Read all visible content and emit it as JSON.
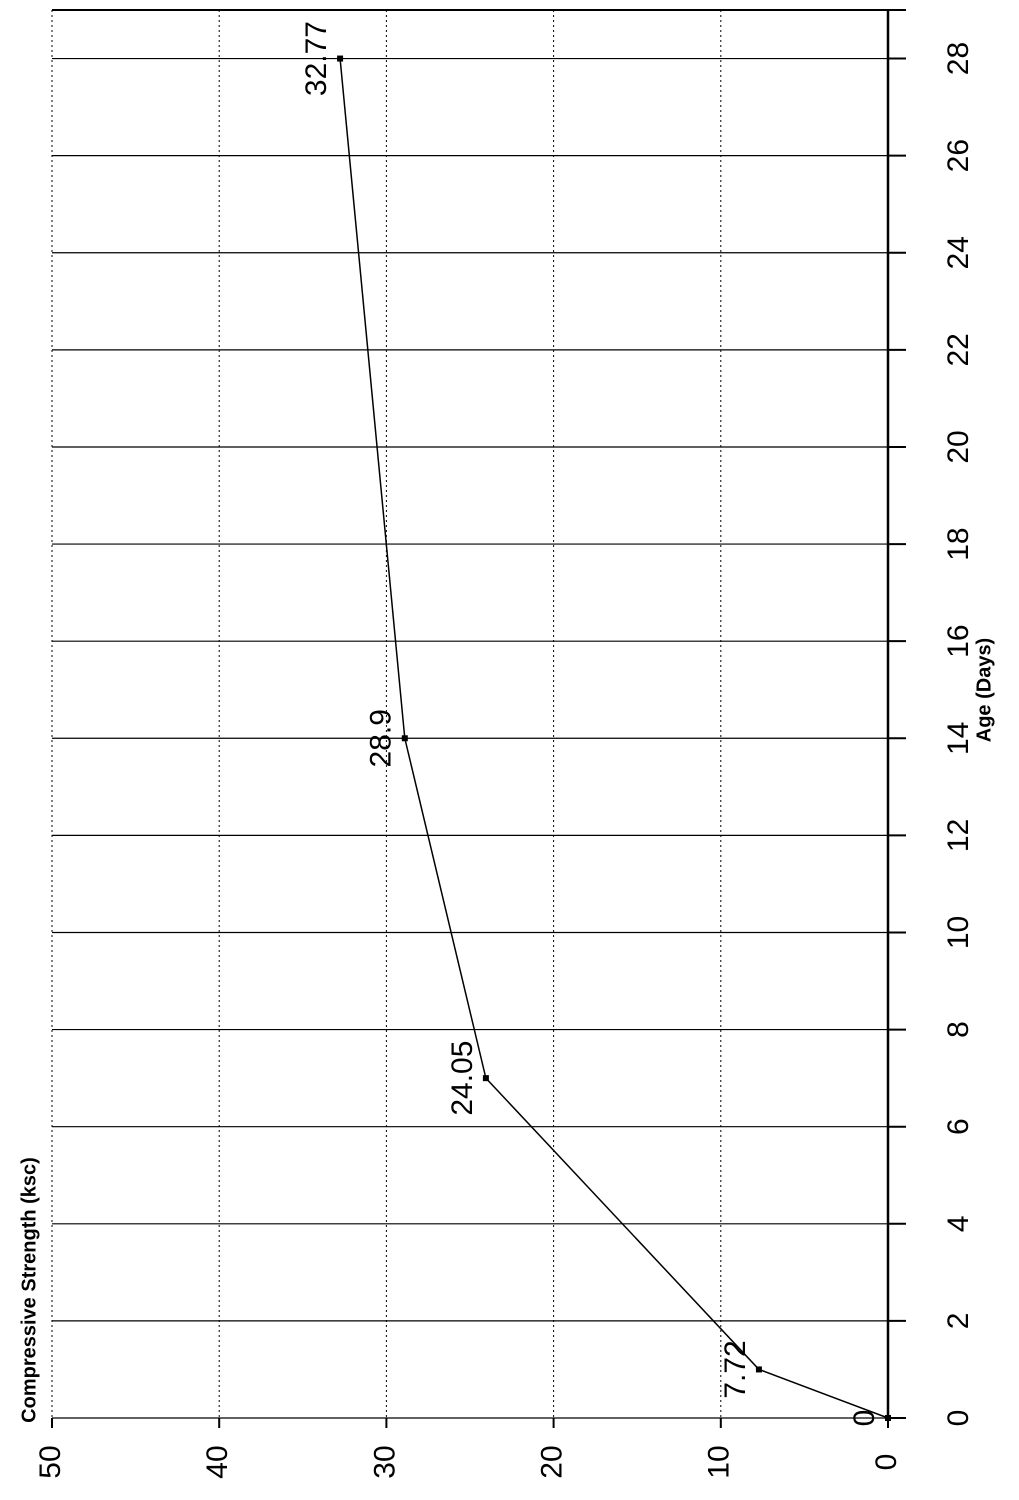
{
  "chart_data": {
    "type": "line",
    "title": "Compressive Strength (ksc)",
    "x_label": "Age (Days)",
    "x": [
      0,
      1,
      7,
      14,
      28
    ],
    "values": [
      0,
      7.72,
      24.05,
      28.9,
      32.77
    ],
    "color": "#000000",
    "xlim": [
      0,
      29
    ],
    "xticks": [
      0,
      2,
      4,
      6,
      8,
      10,
      12,
      14,
      16,
      18,
      20,
      22,
      24,
      26,
      28
    ],
    "ylim": [
      0,
      50
    ],
    "yticks": [
      0,
      10,
      20,
      30,
      40,
      50
    ],
    "grid": true
  }
}
